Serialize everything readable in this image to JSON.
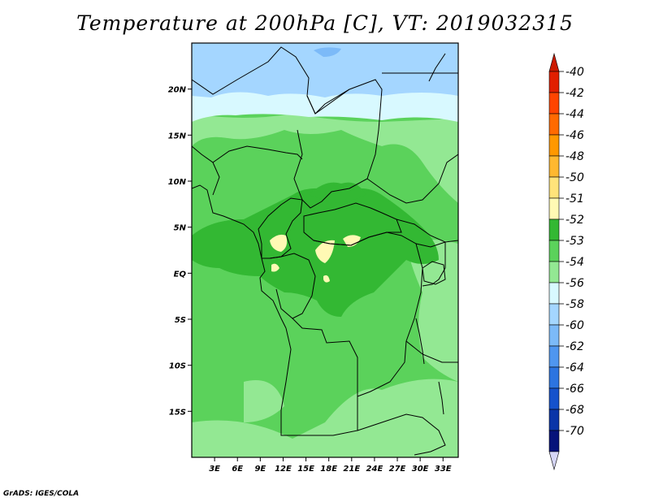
{
  "title": "Temperature at 200hPa [C], VT: 2019032315",
  "credit": "GrADS: IGES/COLA",
  "map": {
    "lon_range": [
      0,
      35
    ],
    "lat_range": [
      -20,
      25
    ],
    "lon_ticks": [
      "3E",
      "6E",
      "9E",
      "12E",
      "15E",
      "18E",
      "21E",
      "24E",
      "27E",
      "30E",
      "33E"
    ],
    "lat_ticks": [
      "20N",
      "15N",
      "10N",
      "5N",
      "EQ",
      "5S",
      "10S",
      "15S"
    ]
  },
  "colorbar": {
    "labels": [
      "-40",
      "-42",
      "-44",
      "-46",
      "-48",
      "-50",
      "-51",
      "-52",
      "-53",
      "-54",
      "-56",
      "-58",
      "-60",
      "-62",
      "-64",
      "-66",
      "-68",
      "-70"
    ],
    "colors": [
      "#e11f00",
      "#ff4400",
      "#ff6a00",
      "#ff9800",
      "#ffb830",
      "#ffe37a",
      "#fff9b4",
      "#33b833",
      "#5bd25b",
      "#93e893",
      "#d8f9ff",
      "#a4d6ff",
      "#7cbaf8",
      "#4f96ef",
      "#2c74e0",
      "#1552cc",
      "#0a35a8",
      "#06137a"
    ],
    "top_arrow_color": "#cc1a00",
    "bottom_arrow_color": "#d6d6f5"
  },
  "field_colors": {
    "c53": "#5bd25b",
    "c52": "#33b833",
    "c51": "#fff9b4",
    "c54": "#93e893",
    "c56": "#d8f9ff",
    "c58": "#a4d6ff",
    "c60": "#7cbaf8"
  }
}
